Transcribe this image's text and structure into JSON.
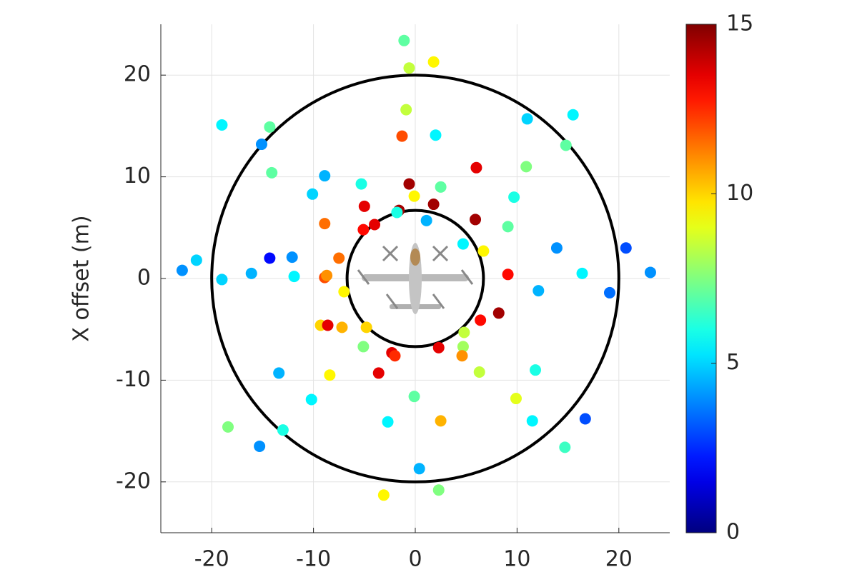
{
  "chart_data": {
    "type": "scatter",
    "ylabel": "X offset (m)",
    "xlim": [
      -25,
      25
    ],
    "xticks": [
      -20,
      -10,
      0,
      10,
      20
    ],
    "ylim": [
      -25,
      25
    ],
    "yticks": [
      -20,
      -10,
      0,
      10,
      20
    ],
    "grid": true,
    "colormap": "jet",
    "clim": [
      0,
      15
    ],
    "cticks": [
      0,
      5,
      10,
      15
    ],
    "rings": [
      20,
      6.7
    ],
    "x": [
      -1.1,
      -0.6,
      1.8,
      -0.9,
      -1.3,
      2.0,
      -19.0,
      -14.3,
      -15.1,
      -14.1,
      -8.9,
      -10.1,
      -5.3,
      -0.6,
      -0.1,
      2.5,
      6.0,
      11.0,
      15.5,
      14.8,
      10.9,
      9.7,
      -5.0,
      1.8,
      -1.6,
      -1.8,
      -4.0,
      -5.1,
      -8.9,
      1.1,
      5.9,
      9.1,
      4.7,
      6.7,
      13.9,
      20.7,
      23.1,
      16.4,
      19.1,
      12.1,
      9.1,
      -22.9,
      -21.5,
      -19.0,
      -16.1,
      -14.3,
      -12.1,
      -11.9,
      -7.5,
      -8.9,
      -8.7,
      -7.0,
      8.2,
      6.4,
      4.8,
      4.7,
      4.6,
      2.3,
      -9.3,
      -8.6,
      -7.2,
      -4.8,
      -5.1,
      -2.3,
      -2.0,
      -3.6,
      -8.4,
      -13.4,
      6.3,
      11.8,
      -0.1,
      -10.2,
      9.9,
      16.7,
      11.5,
      2.5,
      -2.7,
      -18.4,
      -13.0,
      -15.3,
      14.7,
      0.4,
      2.3,
      -3.1
    ],
    "y": [
      23.4,
      20.7,
      21.3,
      16.6,
      14.0,
      14.1,
      15.1,
      14.9,
      13.2,
      10.4,
      10.1,
      8.3,
      9.3,
      9.3,
      8.1,
      9.0,
      10.9,
      15.7,
      16.1,
      13.1,
      11.0,
      8.0,
      7.1,
      7.3,
      6.7,
      6.5,
      5.3,
      4.8,
      5.4,
      5.7,
      5.8,
      5.1,
      3.4,
      2.7,
      3.0,
      3.0,
      0.6,
      0.5,
      -1.4,
      -1.2,
      0.4,
      0.8,
      1.8,
      -0.1,
      0.5,
      2.0,
      2.1,
      0.2,
      2.0,
      0.1,
      0.3,
      -1.3,
      -3.4,
      -4.1,
      -5.3,
      -6.7,
      -7.6,
      -6.8,
      -4.6,
      -4.6,
      -4.8,
      -4.8,
      -6.7,
      -7.3,
      -7.6,
      -9.3,
      -9.5,
      -9.3,
      -9.2,
      -9.0,
      -11.6,
      -11.9,
      -11.8,
      -13.8,
      -14.0,
      -14.0,
      -14.1,
      -14.6,
      -14.9,
      -16.5,
      -16.6,
      -18.7,
      -20.8,
      -21.3
    ],
    "c": [
      7,
      8.5,
      9.5,
      8.5,
      12,
      5.5,
      5.5,
      7,
      4,
      7,
      4.5,
      5,
      6,
      14.5,
      9.5,
      7,
      13.5,
      5,
      5.5,
      7,
      7.5,
      6,
      13.5,
      14.5,
      14.5,
      6,
      13.5,
      13,
      11.5,
      4.5,
      14.5,
      7,
      5.5,
      9.5,
      4,
      3,
      4,
      5.5,
      3.5,
      4.5,
      13,
      4,
      5,
      5,
      4.5,
      2,
      4,
      5.5,
      11.5,
      12,
      11,
      9.5,
      14.5,
      13,
      8.5,
      8,
      11,
      13.5,
      10,
      13.5,
      10.5,
      10,
      7.5,
      13.5,
      12.5,
      13.5,
      9.5,
      4.5,
      8.5,
      6,
      7,
      5.5,
      9,
      3,
      5.5,
      10.5,
      5.5,
      7.5,
      6,
      4,
      6.5,
      4.5,
      7.5,
      9.5
    ]
  }
}
